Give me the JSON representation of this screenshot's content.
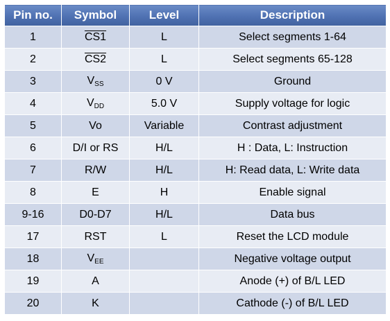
{
  "headers": {
    "pin": "Pin no.",
    "symbol": "Symbol",
    "level": "Level",
    "description": "Description"
  },
  "rows": [
    {
      "pin": "1",
      "symbol": "CS1",
      "symbol_overline": true,
      "level": "L",
      "description": "Select segments 1-64"
    },
    {
      "pin": "2",
      "symbol": "CS2",
      "symbol_overline": true,
      "level": "L",
      "description": "Select segments 65-128"
    },
    {
      "pin": "3",
      "symbol": "V",
      "symbol_sub": "SS",
      "level": "0 V",
      "description": "Ground"
    },
    {
      "pin": "4",
      "symbol": "V",
      "symbol_sub": "DD",
      "level": "5.0 V",
      "description": "Supply voltage for logic"
    },
    {
      "pin": "5",
      "symbol": "Vo",
      "level": "Variable",
      "description": "Contrast adjustment"
    },
    {
      "pin": "6",
      "symbol": "D/I or RS",
      "level": "H/L",
      "description": "H : Data, L: Instruction"
    },
    {
      "pin": "7",
      "symbol": "R/W",
      "level": "H/L",
      "description": "H: Read data, L: Write data"
    },
    {
      "pin": "8",
      "symbol": "E",
      "level": "H",
      "description": "Enable signal"
    },
    {
      "pin": "9-16",
      "symbol": "D0-D7",
      "level": "H/L",
      "description": "Data bus"
    },
    {
      "pin": "17",
      "symbol": "RST",
      "level": "L",
      "description": "Reset the LCD module"
    },
    {
      "pin": "18",
      "symbol": "V",
      "symbol_sub": "EE",
      "level": "",
      "description": "Negative voltage output"
    },
    {
      "pin": "19",
      "symbol": "A",
      "level": "",
      "description": "Anode (+) of B/L LED"
    },
    {
      "pin": "20",
      "symbol": "K",
      "level": "",
      "description": "Cathode (-) of B/L LED"
    }
  ],
  "colors": {
    "header_bg": "#4f71b2",
    "row_odd": "#cfd7e8",
    "row_even": "#e8ecf4"
  }
}
